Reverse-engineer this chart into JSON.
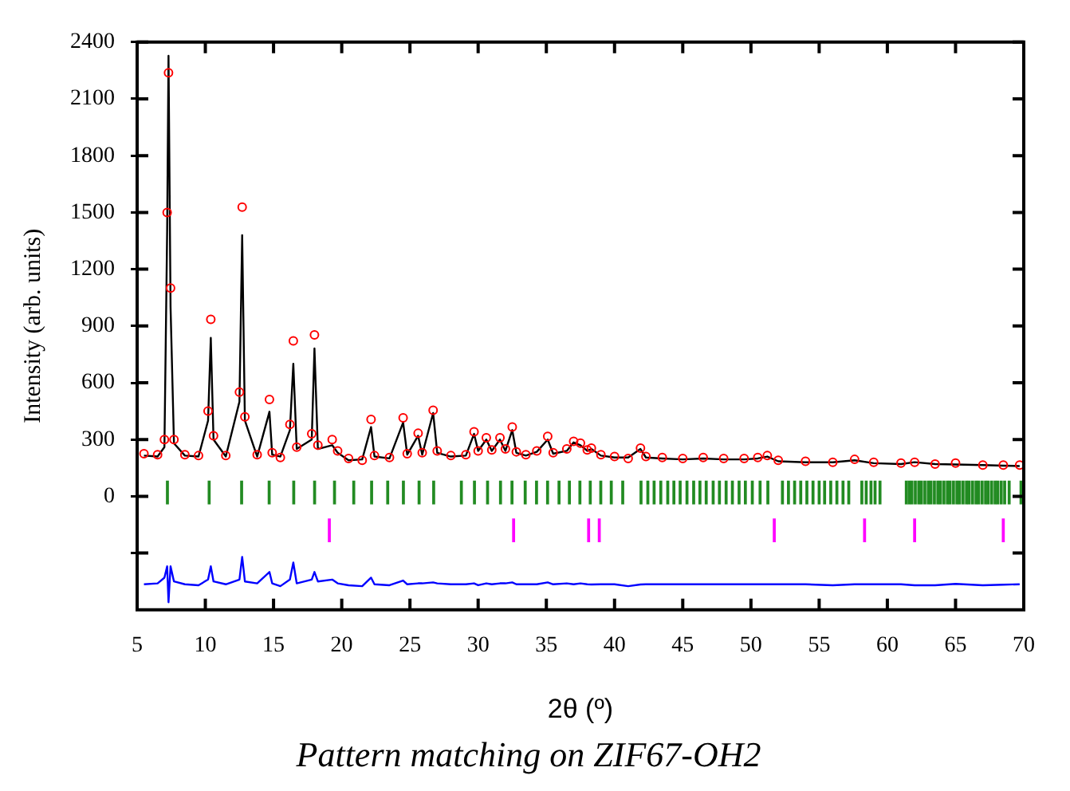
{
  "chart_data": {
    "type": "scatter",
    "title": "Pattern matching on ZIF67-OH2",
    "xlabel": "2θ (º)",
    "ylabel": "Intensity (arb. units)",
    "xlim": [
      5,
      70
    ],
    "ylim": [
      -600,
      2400
    ],
    "xticks": [
      5,
      10,
      15,
      20,
      25,
      30,
      35,
      40,
      45,
      50,
      55,
      60,
      65,
      70
    ],
    "yticks": [
      {
        "value": -300,
        "label": null
      },
      0,
      300,
      600,
      900,
      1200,
      1500,
      1800,
      2100,
      2400
    ],
    "grid": false,
    "legend": false,
    "series": [
      {
        "marker": "circle",
        "color": "#ff0000",
        "x": [
          5.5,
          6.5,
          7.0,
          7.2,
          7.3,
          7.45,
          7.7,
          8.5,
          9.5,
          10.2,
          10.4,
          10.6,
          11.5,
          12.5,
          12.7,
          12.9,
          13.8,
          14.7,
          14.9,
          15.5,
          16.2,
          16.45,
          16.7,
          17.8,
          18.0,
          18.25,
          19.3,
          19.7,
          20.5,
          21.5,
          22.15,
          22.4,
          23.5,
          24.5,
          24.8,
          25.6,
          25.9,
          26.7,
          27.0,
          28.0,
          29.1,
          29.7,
          30.0,
          30.6,
          31.0,
          31.6,
          32.0,
          32.5,
          32.8,
          33.5,
          34.3,
          35.1,
          35.5,
          36.5,
          37.0,
          37.5,
          38.0,
          38.3,
          39.0,
          40.0,
          41.0,
          41.9,
          42.3,
          43.5,
          45.0,
          46.5,
          48.0,
          49.5,
          50.5,
          51.2,
          52.0,
          54.0,
          56.0,
          57.6,
          59.0,
          61.0,
          62.0,
          63.5,
          65.0,
          67.0,
          68.5,
          69.7
        ],
        "values": [
          225,
          220,
          300,
          1500,
          2238,
          1100,
          300,
          220,
          215,
          450,
          935,
          320,
          215,
          550,
          1528,
          420,
          220,
          512,
          230,
          205,
          380,
          821,
          260,
          330,
          853,
          270,
          300,
          240,
          200,
          190,
          406,
          215,
          205,
          415,
          225,
          333,
          230,
          455,
          240,
          215,
          220,
          341,
          240,
          309,
          245,
          309,
          250,
          366,
          235,
          220,
          240,
          317,
          230,
          250,
          290,
          281,
          245,
          254,
          220,
          210,
          200,
          254,
          210,
          205,
          200,
          205,
          200,
          200,
          205,
          215,
          190,
          185,
          180,
          195,
          180,
          175,
          180,
          170,
          175,
          165,
          165,
          165
        ]
      },
      {
        "type": "line",
        "marker": "none",
        "color": "#000000",
        "x": [
          5.5,
          6.5,
          7.0,
          7.2,
          7.3,
          7.45,
          7.7,
          8.5,
          9.5,
          10.2,
          10.4,
          10.6,
          11.5,
          12.5,
          12.7,
          12.9,
          13.8,
          14.7,
          14.9,
          15.5,
          16.2,
          16.45,
          16.7,
          17.8,
          18.0,
          18.25,
          19.3,
          19.7,
          20.5,
          21.5,
          22.15,
          22.4,
          23.5,
          24.5,
          24.8,
          25.6,
          25.9,
          26.7,
          27.0,
          28.0,
          29.1,
          29.7,
          30.0,
          30.6,
          31.0,
          31.6,
          32.0,
          32.5,
          32.8,
          33.5,
          34.3,
          35.1,
          35.5,
          36.5,
          37.0,
          37.5,
          38.0,
          38.3,
          39.0,
          40.0,
          41.0,
          41.9,
          42.3,
          43.5,
          45.0,
          46.5,
          48.0,
          49.5,
          50.5,
          51.2,
          52.0,
          54.0,
          56.0,
          57.6,
          59.0,
          61.0,
          62.0,
          63.5,
          65.0,
          67.0,
          68.5,
          69.7
        ],
        "values": [
          215,
          210,
          260,
          1400,
          2328,
          1000,
          280,
          215,
          210,
          400,
          837,
          300,
          210,
          500,
          1380,
          400,
          210,
          447,
          220,
          210,
          350,
          700,
          250,
          300,
          781,
          250,
          270,
          230,
          190,
          195,
          366,
          210,
          200,
          390,
          220,
          320,
          220,
          440,
          230,
          210,
          215,
          330,
          240,
          300,
          240,
          300,
          240,
          350,
          230,
          215,
          235,
          300,
          225,
          240,
          285,
          270,
          240,
          250,
          215,
          205,
          205,
          250,
          205,
          200,
          195,
          200,
          195,
          195,
          200,
          210,
          185,
          180,
          180,
          190,
          175,
          170,
          180,
          170,
          168,
          165,
          162,
          160
        ]
      },
      {
        "type": "bar",
        "color": "#228b22",
        "base": [
          -40,
          -40,
          -40,
          -40,
          -40,
          -40,
          -40,
          -40,
          -40,
          -40,
          -40,
          -40,
          -40,
          -40,
          -40,
          -40,
          -40,
          -40,
          -40,
          -40,
          -40,
          -40,
          -40,
          -40,
          -40,
          -40,
          -40,
          -40,
          -40,
          -40,
          -40,
          -40,
          -40,
          -40,
          -40,
          -40,
          -40,
          -40,
          -40,
          -40,
          -40,
          -40,
          -40,
          -40,
          -40,
          -40,
          -40,
          -40,
          -40,
          -40,
          -40,
          -40,
          -40,
          -40,
          -40,
          -40,
          -40,
          -40,
          -40,
          -40,
          -40,
          -40,
          -40,
          -40,
          -40,
          -40,
          -40,
          -40,
          -40,
          -40,
          -40,
          -40,
          -40,
          -40,
          -40,
          -40,
          -40,
          -40,
          -40,
          -40,
          -40,
          -40,
          -40,
          -40,
          -40,
          -40,
          -40,
          -40,
          -40,
          -40,
          -40,
          -40,
          -40,
          -40,
          -40,
          -40,
          -40,
          -40,
          -40
        ],
        "x": [
          7.22,
          10.28,
          12.66,
          14.68,
          16.48,
          18.01,
          19.47,
          20.88,
          22.19,
          23.37,
          24.52,
          25.67,
          26.74,
          28.77,
          29.73,
          30.69,
          31.64,
          32.48,
          33.45,
          34.28,
          35.09,
          35.93,
          36.69,
          37.46,
          38.22,
          38.99,
          39.76,
          40.6,
          41.94,
          42.44,
          42.9,
          43.39,
          43.9,
          44.35,
          44.81,
          45.31,
          45.8,
          46.26,
          46.72,
          47.23,
          47.69,
          48.18,
          48.64,
          49.13,
          49.59,
          50.1,
          50.67,
          51.24,
          52.31,
          52.75,
          53.2,
          53.65,
          54.1,
          54.55,
          55.0,
          55.4,
          55.85,
          56.3,
          56.75,
          57.17,
          58.13,
          58.45,
          58.8,
          59.1,
          59.46,
          61.39,
          61.6,
          61.8,
          62.05,
          62.3,
          62.5,
          62.75,
          63.0,
          63.2,
          63.45,
          63.7,
          63.9,
          64.15,
          64.4,
          64.6,
          64.85,
          65.1,
          65.3,
          65.55,
          65.8,
          66.0,
          66.25,
          66.5,
          66.7,
          66.95,
          67.2,
          67.4,
          67.65,
          67.9,
          68.1,
          68.35,
          68.6,
          68.93,
          69.8
        ],
        "values": [
          120,
          120,
          120,
          120,
          120,
          120,
          120,
          120,
          120,
          120,
          120,
          120,
          120,
          120,
          120,
          120,
          120,
          120,
          120,
          120,
          120,
          120,
          120,
          120,
          120,
          120,
          120,
          120,
          120,
          120,
          120,
          120,
          120,
          120,
          120,
          120,
          120,
          120,
          120,
          120,
          120,
          120,
          120,
          120,
          120,
          120,
          120,
          120,
          120,
          120,
          120,
          120,
          120,
          120,
          120,
          120,
          120,
          120,
          120,
          120,
          120,
          120,
          120,
          120,
          120,
          120,
          120,
          120,
          120,
          120,
          120,
          120,
          120,
          120,
          120,
          120,
          120,
          120,
          120,
          120,
          120,
          120,
          120,
          120,
          120,
          120,
          120,
          120,
          120,
          120,
          120,
          120,
          120,
          120,
          120,
          120,
          120,
          120,
          120
        ]
      },
      {
        "type": "bar",
        "color": "#ff00ff",
        "base": [
          -240,
          -240,
          -240,
          -240,
          -240,
          -240,
          -240,
          -240
        ],
        "x": [
          19.09,
          32.6,
          38.1,
          38.88,
          51.71,
          58.33,
          62.0,
          68.5
        ],
        "values": [
          120,
          120,
          120,
          120,
          120,
          120,
          120,
          120
        ]
      },
      {
        "type": "line",
        "marker": "none",
        "color": "#0000ff",
        "x": [
          5.5,
          6.5,
          7.0,
          7.2,
          7.3,
          7.45,
          7.7,
          8.5,
          9.5,
          10.2,
          10.4,
          10.6,
          11.5,
          12.5,
          12.7,
          12.9,
          13.8,
          14.7,
          14.9,
          15.5,
          16.2,
          16.45,
          16.7,
          17.8,
          18.0,
          18.25,
          19.3,
          19.7,
          20.5,
          21.5,
          22.15,
          22.4,
          23.5,
          24.5,
          24.8,
          25.6,
          25.9,
          26.7,
          27.0,
          28.0,
          29.1,
          29.7,
          30.0,
          30.6,
          31.0,
          31.6,
          32.0,
          32.5,
          32.8,
          33.5,
          34.3,
          35.1,
          35.5,
          36.5,
          37.0,
          37.5,
          38.0,
          38.3,
          39.0,
          40.0,
          41.0,
          41.9,
          42.3,
          43.5,
          45.0,
          46.5,
          48.0,
          49.5,
          50.5,
          51.2,
          52.0,
          54.0,
          56.0,
          57.6,
          59.0,
          61.0,
          62.0,
          63.5,
          65.0,
          67.0,
          68.5,
          69.7
        ],
        "values": [
          -465,
          -460,
          -430,
          -370,
          -560,
          -370,
          -450,
          -465,
          -470,
          -440,
          -370,
          -450,
          -465,
          -440,
          -320,
          -450,
          -460,
          -400,
          -460,
          -475,
          -440,
          -350,
          -460,
          -440,
          -400,
          -450,
          -440,
          -460,
          -470,
          -475,
          -430,
          -465,
          -470,
          -445,
          -465,
          -460,
          -460,
          -455,
          -460,
          -465,
          -465,
          -460,
          -470,
          -460,
          -465,
          -460,
          -460,
          -455,
          -465,
          -465,
          -465,
          -455,
          -465,
          -460,
          -465,
          -460,
          -465,
          -466,
          -465,
          -465,
          -475,
          -466,
          -465,
          -465,
          -465,
          -465,
          -465,
          -465,
          -465,
          -465,
          -465,
          -465,
          -470,
          -465,
          -465,
          -465,
          -470,
          -470,
          -463,
          -470,
          -467,
          -465
        ]
      }
    ]
  }
}
